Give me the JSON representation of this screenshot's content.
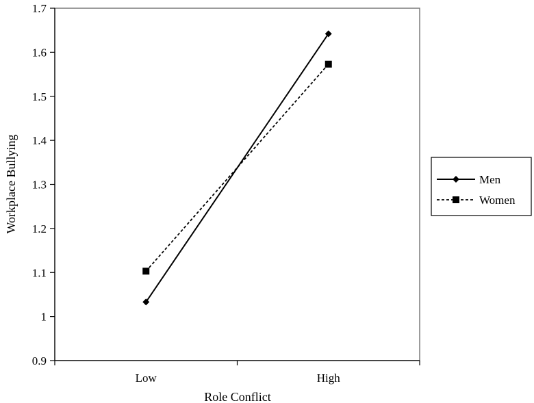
{
  "chart_data": {
    "type": "line",
    "title": "",
    "xlabel": "Role Conflict",
    "ylabel": "Workplace Bullying",
    "categories": [
      "Low",
      "High"
    ],
    "ylim": [
      0.9,
      1.7
    ],
    "yticks": [
      0.9,
      1,
      1.1,
      1.2,
      1.3,
      1.4,
      1.5,
      1.6,
      1.7
    ],
    "ytick_labels": [
      "0.9",
      "1",
      "1.1",
      "1.2",
      "1.3",
      "1.4",
      "1.5",
      "1.6",
      "1.7"
    ],
    "grid": false,
    "legend_position": "right",
    "series": [
      {
        "name": "Men",
        "values": [
          1.033,
          1.642
        ],
        "line_style": "solid",
        "marker": "diamond",
        "color": "#000000"
      },
      {
        "name": "Women",
        "values": [
          1.103,
          1.573
        ],
        "line_style": "dashed",
        "marker": "square",
        "color": "#000000"
      }
    ]
  }
}
